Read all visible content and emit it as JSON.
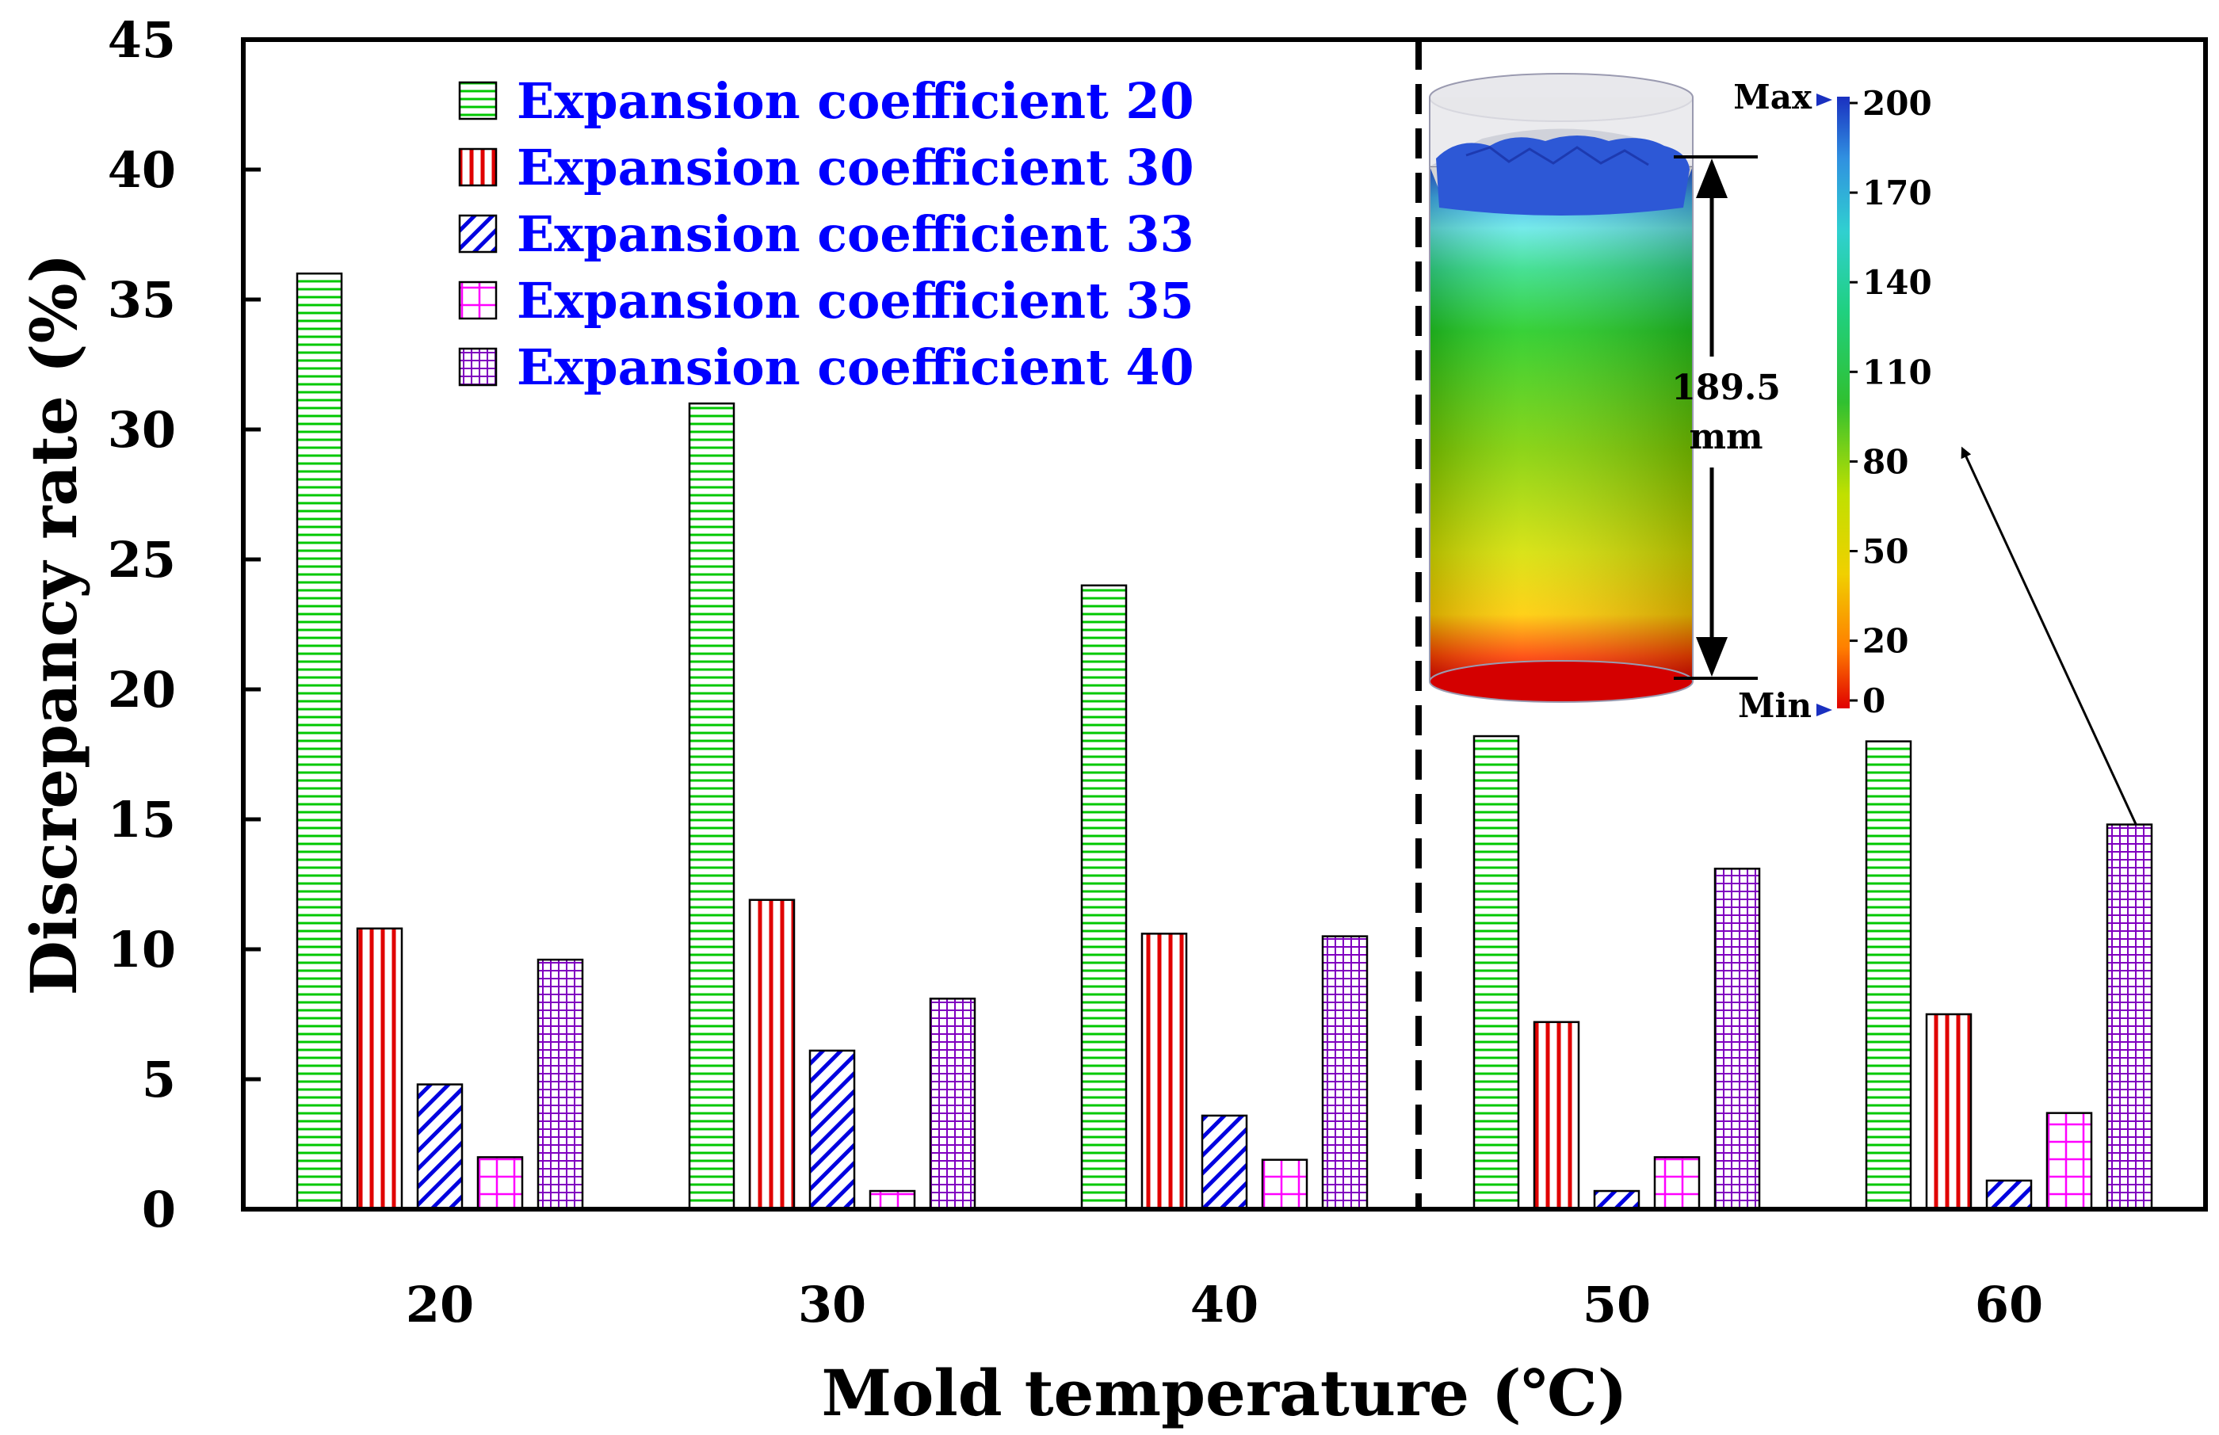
{
  "chart_data": {
    "type": "bar",
    "xlabel": "Mold temperature (℃)",
    "ylabel": "Discrepancy rate (%)",
    "ylim": [
      0,
      45
    ],
    "yticks": [
      0,
      5,
      10,
      15,
      20,
      25,
      30,
      35,
      40,
      45
    ],
    "categories": [
      "20",
      "30",
      "40",
      "50",
      "60"
    ],
    "grid": false,
    "legend_position": "top-left",
    "series": [
      {
        "name": "Expansion coefficient 20",
        "color": "#00c800",
        "pattern": "horizontal",
        "values": [
          36.0,
          31.0,
          24.0,
          18.2,
          18.0
        ]
      },
      {
        "name": "Expansion coefficient 30",
        "color": "#e00000",
        "pattern": "vertical",
        "values": [
          10.8,
          11.9,
          10.6,
          7.2,
          7.5
        ]
      },
      {
        "name": "Expansion coefficient 33",
        "color": "#0000e0",
        "pattern": "diagonal",
        "values": [
          4.8,
          6.1,
          3.6,
          0.7,
          1.1
        ]
      },
      {
        "name": "Expansion coefficient 35",
        "color": "#ff00ff",
        "pattern": "grid",
        "values": [
          2.0,
          0.7,
          1.9,
          2.0,
          3.7
        ]
      },
      {
        "name": "Expansion coefficient 40",
        "color": "#8000c0",
        "pattern": "finegrid",
        "values": [
          9.6,
          8.1,
          10.5,
          13.1,
          14.8
        ]
      }
    ],
    "annotations": {
      "dashed_divider_between": [
        "40",
        "50"
      ],
      "inset": {
        "description": "cylinder simulation contour",
        "dimension_label": [
          "189.5",
          "mm"
        ],
        "colorbar_ticks": [
          0,
          20,
          50,
          80,
          110,
          140,
          170,
          200
        ],
        "colorbar_max_label": "Max",
        "colorbar_min_label": "Min"
      }
    }
  }
}
